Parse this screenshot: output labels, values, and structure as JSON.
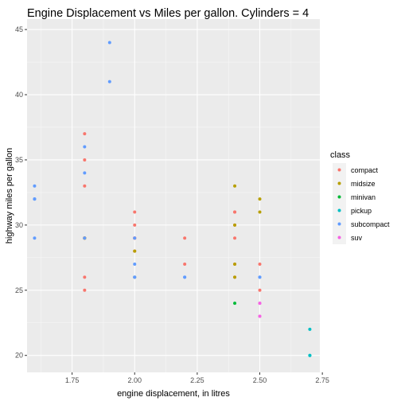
{
  "chart_data": {
    "type": "scatter",
    "title": "Engine Displacement vs Miles per gallon. Cylinders = 4",
    "xlabel": "engine displacement, in litres",
    "ylabel": "highway miles per gallon",
    "xlim": [
      1.57,
      2.74
    ],
    "ylim": [
      18.7,
      45.8
    ],
    "x_ticks": [
      1.75,
      2.0,
      2.25,
      2.5,
      2.75
    ],
    "x_tick_labels": [
      "1.75",
      "2.00",
      "2.25",
      "2.50",
      "2.75"
    ],
    "y_ticks": [
      20,
      25,
      30,
      35,
      40,
      45
    ],
    "y_tick_labels": [
      "20",
      "25",
      "30",
      "35",
      "40",
      "45"
    ],
    "grid": true,
    "legend": {
      "title": "class",
      "placement": "right"
    },
    "series": [
      {
        "name": "compact",
        "color": "#F8766D",
        "points": [
          [
            1.8,
            29
          ],
          [
            1.8,
            29
          ],
          [
            2.0,
            31
          ],
          [
            2.0,
            30
          ],
          [
            2.4,
            26
          ],
          [
            2.4,
            29
          ],
          [
            2.0,
            28
          ],
          [
            2.0,
            29
          ],
          [
            2.4,
            27
          ],
          [
            2.4,
            30
          ],
          [
            2.2,
            27
          ],
          [
            2.2,
            29
          ],
          [
            2.4,
            31
          ],
          [
            2.4,
            31
          ],
          [
            2.5,
            27
          ],
          [
            2.5,
            25
          ],
          [
            1.8,
            35
          ],
          [
            1.8,
            37
          ],
          [
            1.8,
            33
          ],
          [
            2.0,
            29
          ],
          [
            2.0,
            29
          ],
          [
            1.8,
            26
          ],
          [
            1.8,
            25
          ],
          [
            1.8,
            29
          ]
        ]
      },
      {
        "name": "midsize",
        "color": "#B79F00",
        "points": [
          [
            2.4,
            27
          ],
          [
            2.4,
            30
          ],
          [
            2.4,
            33
          ],
          [
            2.4,
            26
          ],
          [
            2.5,
            32
          ],
          [
            2.5,
            31
          ],
          [
            1.8,
            29
          ],
          [
            1.8,
            29
          ],
          [
            2.0,
            26
          ],
          [
            2.0,
            28
          ]
        ]
      },
      {
        "name": "minivan",
        "color": "#00BA38",
        "points": [
          [
            2.4,
            24
          ]
        ]
      },
      {
        "name": "pickup",
        "color": "#00BFC4",
        "points": [
          [
            2.7,
            20
          ],
          [
            2.7,
            22
          ],
          [
            2.7,
            20
          ]
        ]
      },
      {
        "name": "subcompact",
        "color": "#619CFF",
        "points": [
          [
            2.0,
            26
          ],
          [
            2.0,
            26
          ],
          [
            2.0,
            27
          ],
          [
            2.2,
            26
          ],
          [
            2.2,
            26
          ],
          [
            2.5,
            26
          ],
          [
            2.5,
            26
          ],
          [
            1.8,
            36
          ],
          [
            1.8,
            34
          ],
          [
            1.9,
            44
          ],
          [
            1.9,
            41
          ],
          [
            1.6,
            33
          ],
          [
            1.6,
            32
          ],
          [
            1.6,
            32
          ],
          [
            1.6,
            29
          ],
          [
            1.6,
            32
          ],
          [
            1.8,
            29
          ],
          [
            2.0,
            29
          ]
        ]
      },
      {
        "name": "suv",
        "color": "#F564E3",
        "points": [
          [
            2.5,
            24
          ],
          [
            2.5,
            24
          ],
          [
            2.5,
            23
          ],
          [
            2.5,
            23
          ]
        ]
      }
    ]
  }
}
